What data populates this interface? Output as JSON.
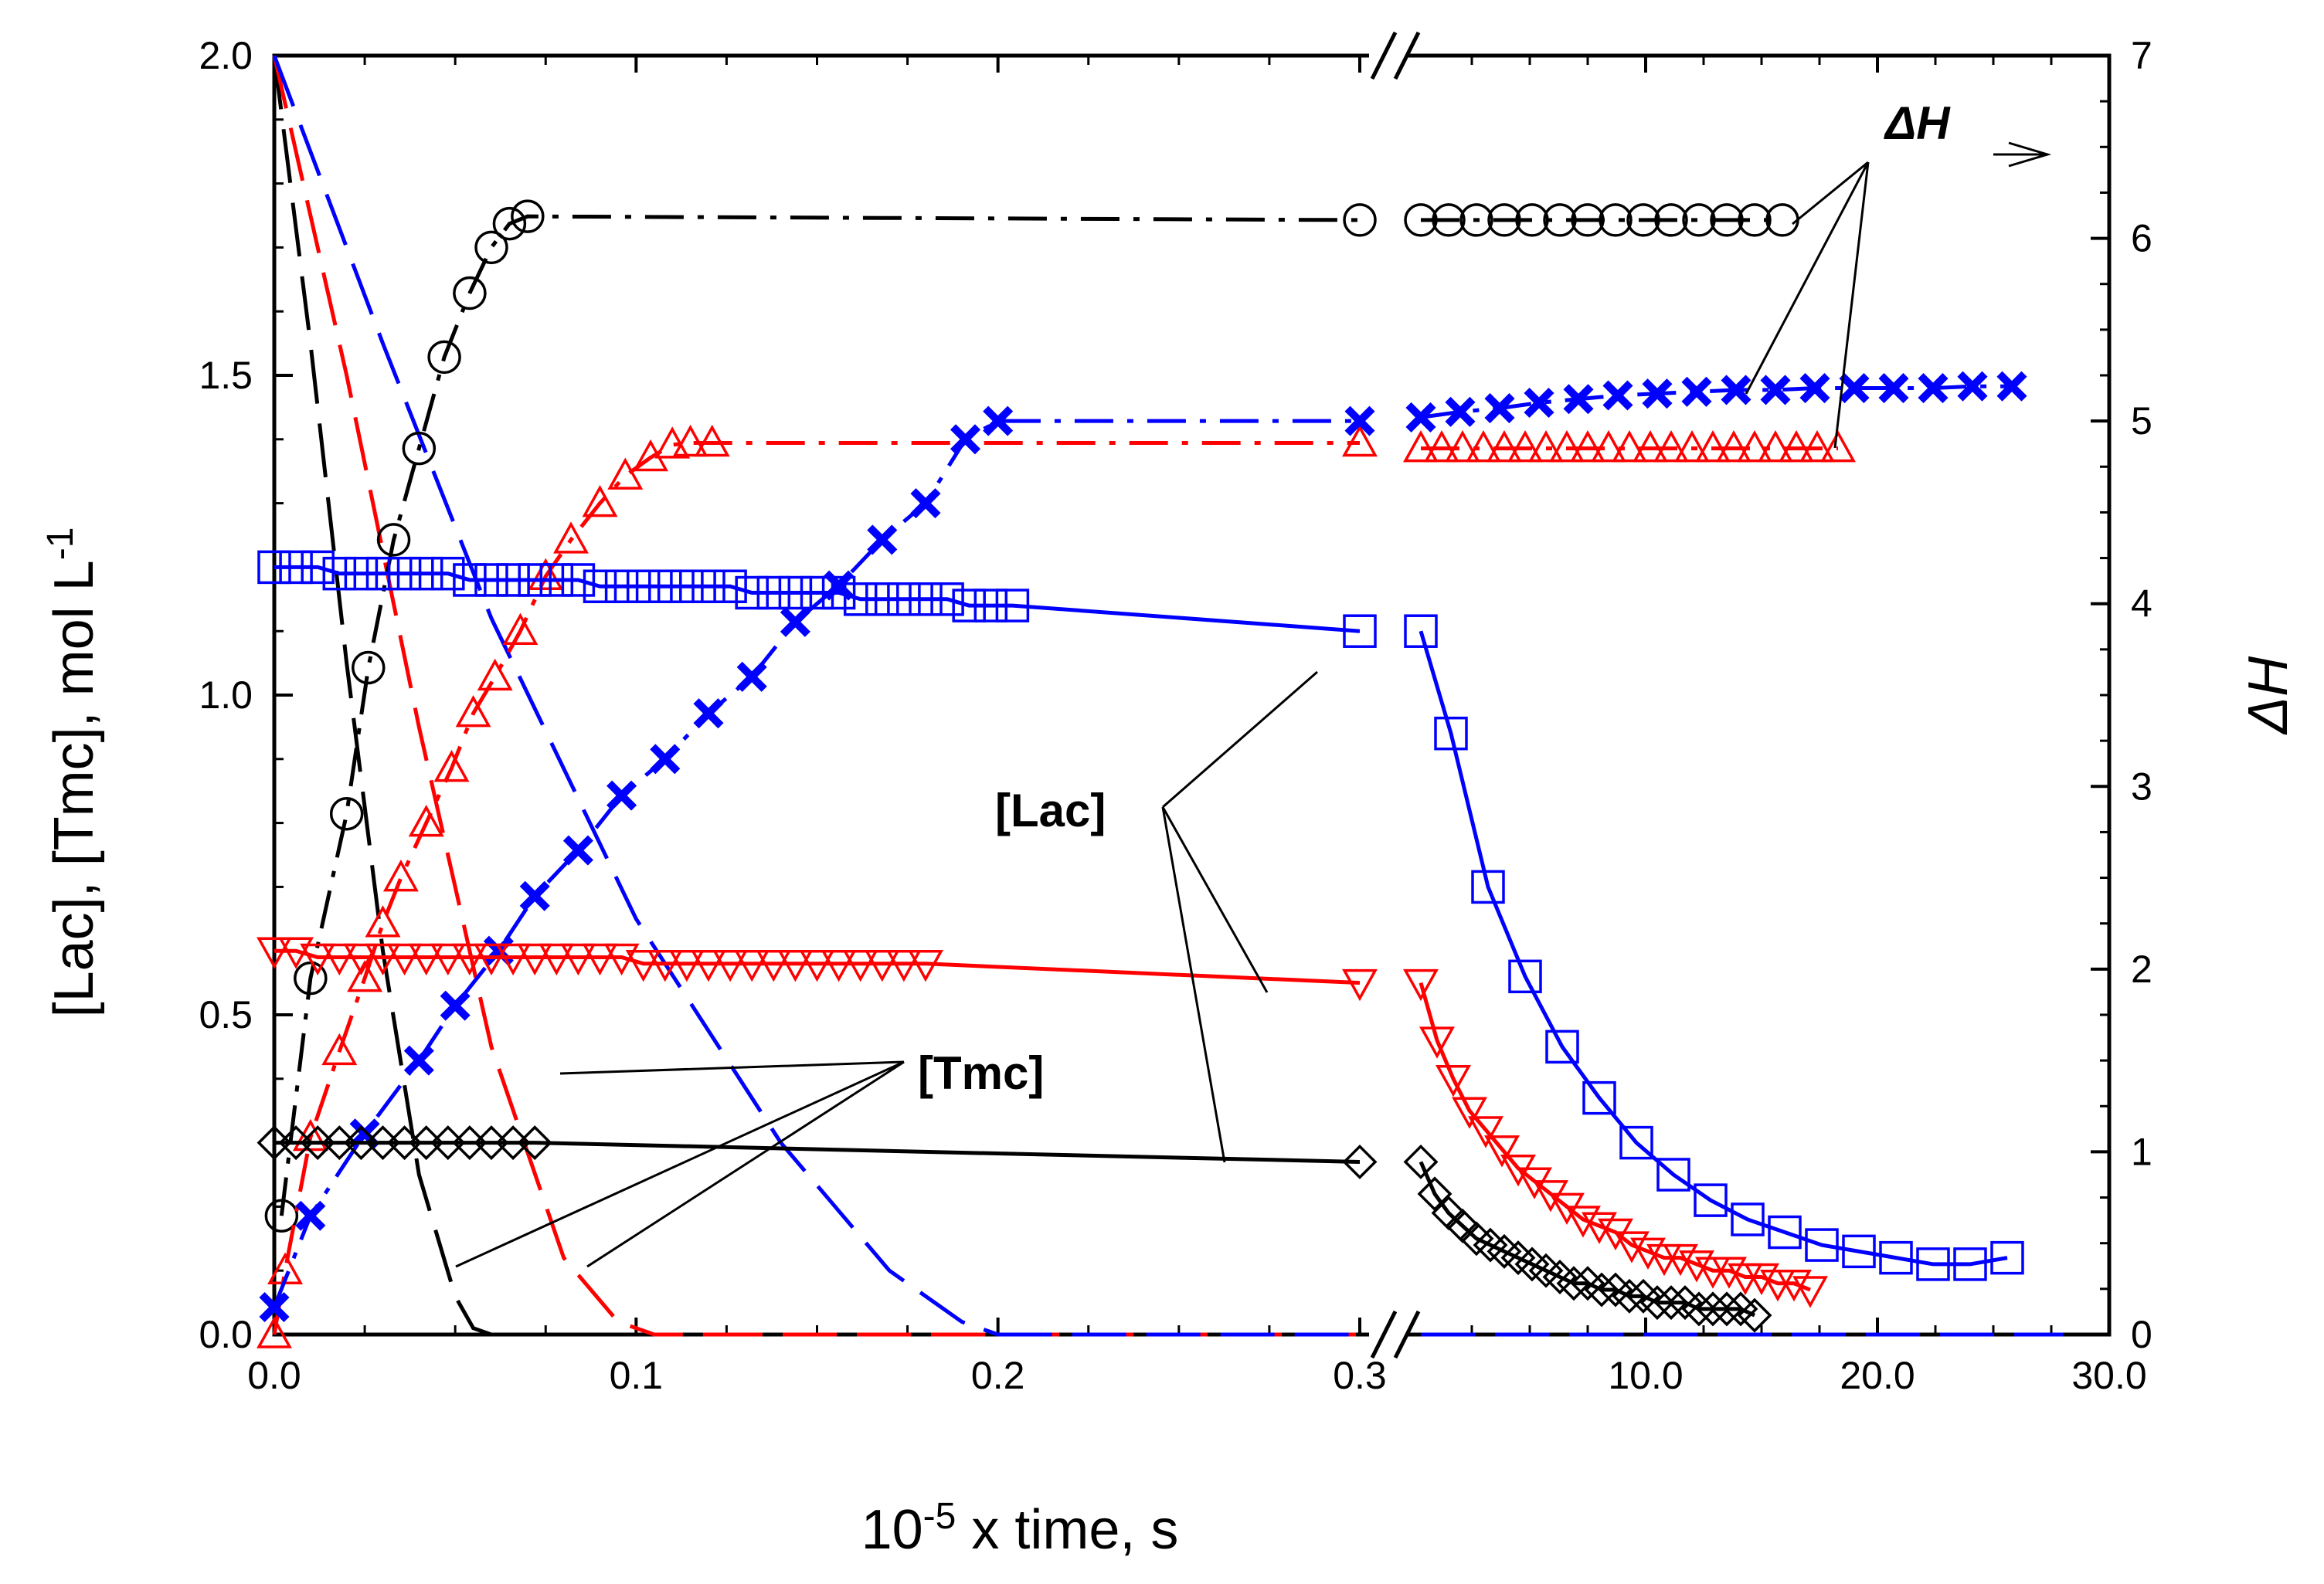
{
  "chart_data": {
    "type": "line",
    "xlabel_base": "10",
    "xlabel_exp": "-5",
    "xlabel_rest": " x time, s",
    "ylabel_left_main": "[Lac], [Tmc], mol L",
    "ylabel_left_exp": "-1",
    "ylabel_right": "ΔH",
    "y_left_range": [
      0,
      2.0
    ],
    "y_right_range": [
      0,
      7
    ],
    "x_left_range": [
      0,
      0.3
    ],
    "x_right_range": [
      0,
      30
    ],
    "x_ticks": [
      "0.0",
      "0.1",
      "0.2",
      "0.3",
      "10.0",
      "20.0",
      "30.0"
    ],
    "y_left_ticks": [
      "0.0",
      "0.5",
      "1.0",
      "1.5",
      "2.0"
    ],
    "y_right_ticks": [
      "0",
      "1",
      "2",
      "3",
      "4",
      "5",
      "6",
      "7"
    ],
    "annotations": {
      "dh": "ΔH",
      "lac": "[Lac]",
      "tmc": "[Tmc]"
    },
    "series": [
      {
        "name": "ΔH black (circles)",
        "axis": "right",
        "color": "#000000",
        "marker": "circle",
        "left_x": [
          0.002,
          0.01,
          0.02,
          0.026,
          0.033,
          0.04,
          0.047,
          0.054,
          0.06,
          0.065,
          0.07,
          0.3
        ],
        "left_y": [
          0.65,
          1.95,
          2.85,
          3.65,
          4.35,
          4.85,
          5.35,
          5.7,
          5.95,
          6.08,
          6.12,
          6.1
        ],
        "right_x": [
          0.3,
          1.5,
          2.7,
          3.9,
          5.1,
          6.3,
          7.5,
          8.7,
          9.9,
          11.1,
          12.3,
          13.5,
          14.7,
          15.9
        ],
        "right_y": [
          6.1,
          6.1,
          6.1,
          6.1,
          6.1,
          6.1,
          6.1,
          6.1,
          6.1,
          6.1,
          6.1,
          6.1,
          6.1,
          6.1
        ]
      },
      {
        "name": "ΔH red (triangles up)",
        "axis": "right",
        "color": "#ff0000",
        "marker": "triangle-up",
        "left_x": [
          0,
          0.003,
          0.01,
          0.018,
          0.025,
          0.03,
          0.035,
          0.042,
          0.049,
          0.055,
          0.061,
          0.068,
          0.075,
          0.082,
          0.09,
          0.097,
          0.104,
          0.11,
          0.115,
          0.121,
          0.3
        ],
        "left_y": [
          0,
          0.35,
          1.08,
          1.55,
          1.95,
          2.25,
          2.5,
          2.8,
          3.1,
          3.4,
          3.6,
          3.85,
          4.15,
          4.35,
          4.55,
          4.7,
          4.8,
          4.87,
          4.88,
          4.88,
          4.88
        ],
        "right_x": [
          0.3,
          1.2,
          2.1,
          3.0,
          3.9,
          4.8,
          5.7,
          6.6,
          7.5,
          8.4,
          9.3,
          10.2,
          11.1,
          12.0,
          12.9,
          13.8,
          14.7,
          15.6,
          16.5,
          17.4,
          18.3
        ],
        "right_y": [
          4.85,
          4.85,
          4.85,
          4.85,
          4.85,
          4.85,
          4.85,
          4.85,
          4.85,
          4.85,
          4.85,
          4.85,
          4.85,
          4.85,
          4.85,
          4.85,
          4.85,
          4.85,
          4.85,
          4.85,
          4.85
        ]
      },
      {
        "name": "ΔH blue (crosses)",
        "axis": "right",
        "color": "#0000ff",
        "marker": "cross",
        "left_x": [
          0,
          0.01,
          0.025,
          0.04,
          0.05,
          0.062,
          0.072,
          0.084,
          0.096,
          0.108,
          0.12,
          0.132,
          0.144,
          0.156,
          0.168,
          0.18,
          0.191,
          0.2,
          0.3
        ],
        "left_y": [
          0.15,
          0.65,
          1.1,
          1.5,
          1.8,
          2.1,
          2.4,
          2.65,
          2.95,
          3.15,
          3.4,
          3.6,
          3.9,
          4.1,
          4.35,
          4.55,
          4.9,
          5.0,
          5.0
        ],
        "right_x": [
          0.3,
          2.0,
          3.7,
          5.4,
          7.1,
          8.8,
          10.5,
          12.2,
          13.9,
          15.6,
          17.3,
          19.0,
          20.7,
          22.4,
          24.1,
          25.8
        ],
        "right_y": [
          5.02,
          5.05,
          5.07,
          5.1,
          5.12,
          5.14,
          5.15,
          5.16,
          5.17,
          5.17,
          5.18,
          5.18,
          5.18,
          5.18,
          5.19,
          5.19
        ]
      },
      {
        "name": "[Lac] blue (squares)",
        "axis": "left",
        "color": "#0000ff",
        "marker": "square",
        "left_x": [
          0,
          0.006,
          0.012,
          0.018,
          0.024,
          0.03,
          0.036,
          0.042,
          0.048,
          0.054,
          0.06,
          0.066,
          0.072,
          0.078,
          0.084,
          0.09,
          0.096,
          0.102,
          0.108,
          0.114,
          0.12,
          0.126,
          0.132,
          0.138,
          0.144,
          0.15,
          0.156,
          0.162,
          0.168,
          0.174,
          0.18,
          0.186,
          0.192,
          0.198,
          0.204,
          0.3
        ],
        "left_y": [
          1.2,
          1.2,
          1.2,
          1.19,
          1.19,
          1.19,
          1.19,
          1.19,
          1.19,
          1.18,
          1.18,
          1.18,
          1.18,
          1.18,
          1.18,
          1.17,
          1.17,
          1.17,
          1.17,
          1.17,
          1.17,
          1.17,
          1.16,
          1.16,
          1.16,
          1.16,
          1.16,
          1.15,
          1.15,
          1.15,
          1.15,
          1.15,
          1.14,
          1.14,
          1.14,
          1.1
        ],
        "right_x": [
          0.3,
          1.6,
          3.2,
          4.8,
          6.4,
          8.0,
          9.6,
          11.2,
          12.8,
          14.4,
          16.0,
          17.6,
          19.2,
          20.8,
          22.4,
          24.0,
          25.6
        ],
        "right_y": [
          1.1,
          0.94,
          0.7,
          0.56,
          0.45,
          0.37,
          0.3,
          0.25,
          0.21,
          0.18,
          0.16,
          0.14,
          0.13,
          0.12,
          0.11,
          0.11,
          0.12
        ]
      },
      {
        "name": "[Lac] red (triangles down)",
        "axis": "left",
        "color": "#ff0000",
        "marker": "triangle-down",
        "left_x": [
          0,
          0.006,
          0.012,
          0.018,
          0.024,
          0.03,
          0.036,
          0.042,
          0.048,
          0.054,
          0.06,
          0.066,
          0.072,
          0.078,
          0.084,
          0.09,
          0.096,
          0.102,
          0.108,
          0.114,
          0.12,
          0.126,
          0.132,
          0.138,
          0.144,
          0.15,
          0.156,
          0.162,
          0.168,
          0.174,
          0.18,
          0.3
        ],
        "left_y": [
          0.6,
          0.6,
          0.59,
          0.59,
          0.59,
          0.59,
          0.59,
          0.59,
          0.59,
          0.59,
          0.59,
          0.59,
          0.59,
          0.59,
          0.59,
          0.59,
          0.59,
          0.58,
          0.58,
          0.58,
          0.58,
          0.58,
          0.58,
          0.58,
          0.58,
          0.58,
          0.58,
          0.58,
          0.58,
          0.58,
          0.58,
          0.55
        ],
        "right_x": [
          0.3,
          1.0,
          1.7,
          2.4,
          3.1,
          3.8,
          4.5,
          5.2,
          5.9,
          6.6,
          7.3,
          8.0,
          8.7,
          9.4,
          10.1,
          10.8,
          11.5,
          12.2,
          12.9,
          13.6,
          14.3,
          15.0,
          15.7,
          16.4,
          17.1
        ],
        "right_y": [
          0.55,
          0.46,
          0.4,
          0.35,
          0.32,
          0.29,
          0.26,
          0.24,
          0.22,
          0.2,
          0.18,
          0.17,
          0.16,
          0.14,
          0.13,
          0.12,
          0.12,
          0.11,
          0.1,
          0.1,
          0.09,
          0.09,
          0.08,
          0.08,
          0.07
        ]
      },
      {
        "name": "[Lac] black (diamonds)",
        "axis": "left",
        "color": "#000000",
        "marker": "diamond",
        "left_x": [
          0,
          0.006,
          0.012,
          0.018,
          0.024,
          0.03,
          0.036,
          0.042,
          0.048,
          0.054,
          0.06,
          0.066,
          0.072,
          0.3
        ],
        "left_y": [
          0.3,
          0.3,
          0.3,
          0.3,
          0.3,
          0.3,
          0.3,
          0.3,
          0.3,
          0.3,
          0.3,
          0.3,
          0.3,
          0.27
        ],
        "right_x": [
          0.3,
          0.9,
          1.5,
          2.1,
          2.7,
          3.3,
          3.9,
          4.5,
          5.1,
          5.7,
          6.3,
          6.9,
          7.5,
          8.1,
          8.7,
          9.3,
          9.9,
          10.5,
          11.1,
          11.7,
          12.3,
          12.9,
          13.5,
          14.1,
          14.7
        ],
        "right_y": [
          0.27,
          0.22,
          0.19,
          0.17,
          0.15,
          0.14,
          0.13,
          0.12,
          0.11,
          0.1,
          0.09,
          0.08,
          0.08,
          0.07,
          0.07,
          0.06,
          0.06,
          0.05,
          0.05,
          0.05,
          0.04,
          0.04,
          0.04,
          0.04,
          0.03
        ]
      }
    ],
    "decay_lines": [
      {
        "name": "[Tmc] black",
        "color": "#000000",
        "x": [
          0,
          0.01,
          0.02,
          0.03,
          0.04,
          0.05,
          0.055,
          0.06
        ],
        "y": [
          2.0,
          1.55,
          1.05,
          0.6,
          0.25,
          0.06,
          0.01,
          0.0
        ]
      },
      {
        "name": "[Tmc] red",
        "color": "#ff0000",
        "x": [
          0,
          0.02,
          0.04,
          0.06,
          0.08,
          0.095,
          0.105,
          0.12
        ],
        "y": [
          2.0,
          1.5,
          0.95,
          0.45,
          0.12,
          0.02,
          0.0,
          0.0
        ]
      },
      {
        "name": "[Tmc] blue",
        "color": "#0000ff",
        "x": [
          0,
          0.03,
          0.06,
          0.1,
          0.14,
          0.17,
          0.19,
          0.2
        ],
        "y": [
          2.0,
          1.55,
          1.12,
          0.65,
          0.3,
          0.1,
          0.02,
          0.0
        ]
      }
    ]
  }
}
